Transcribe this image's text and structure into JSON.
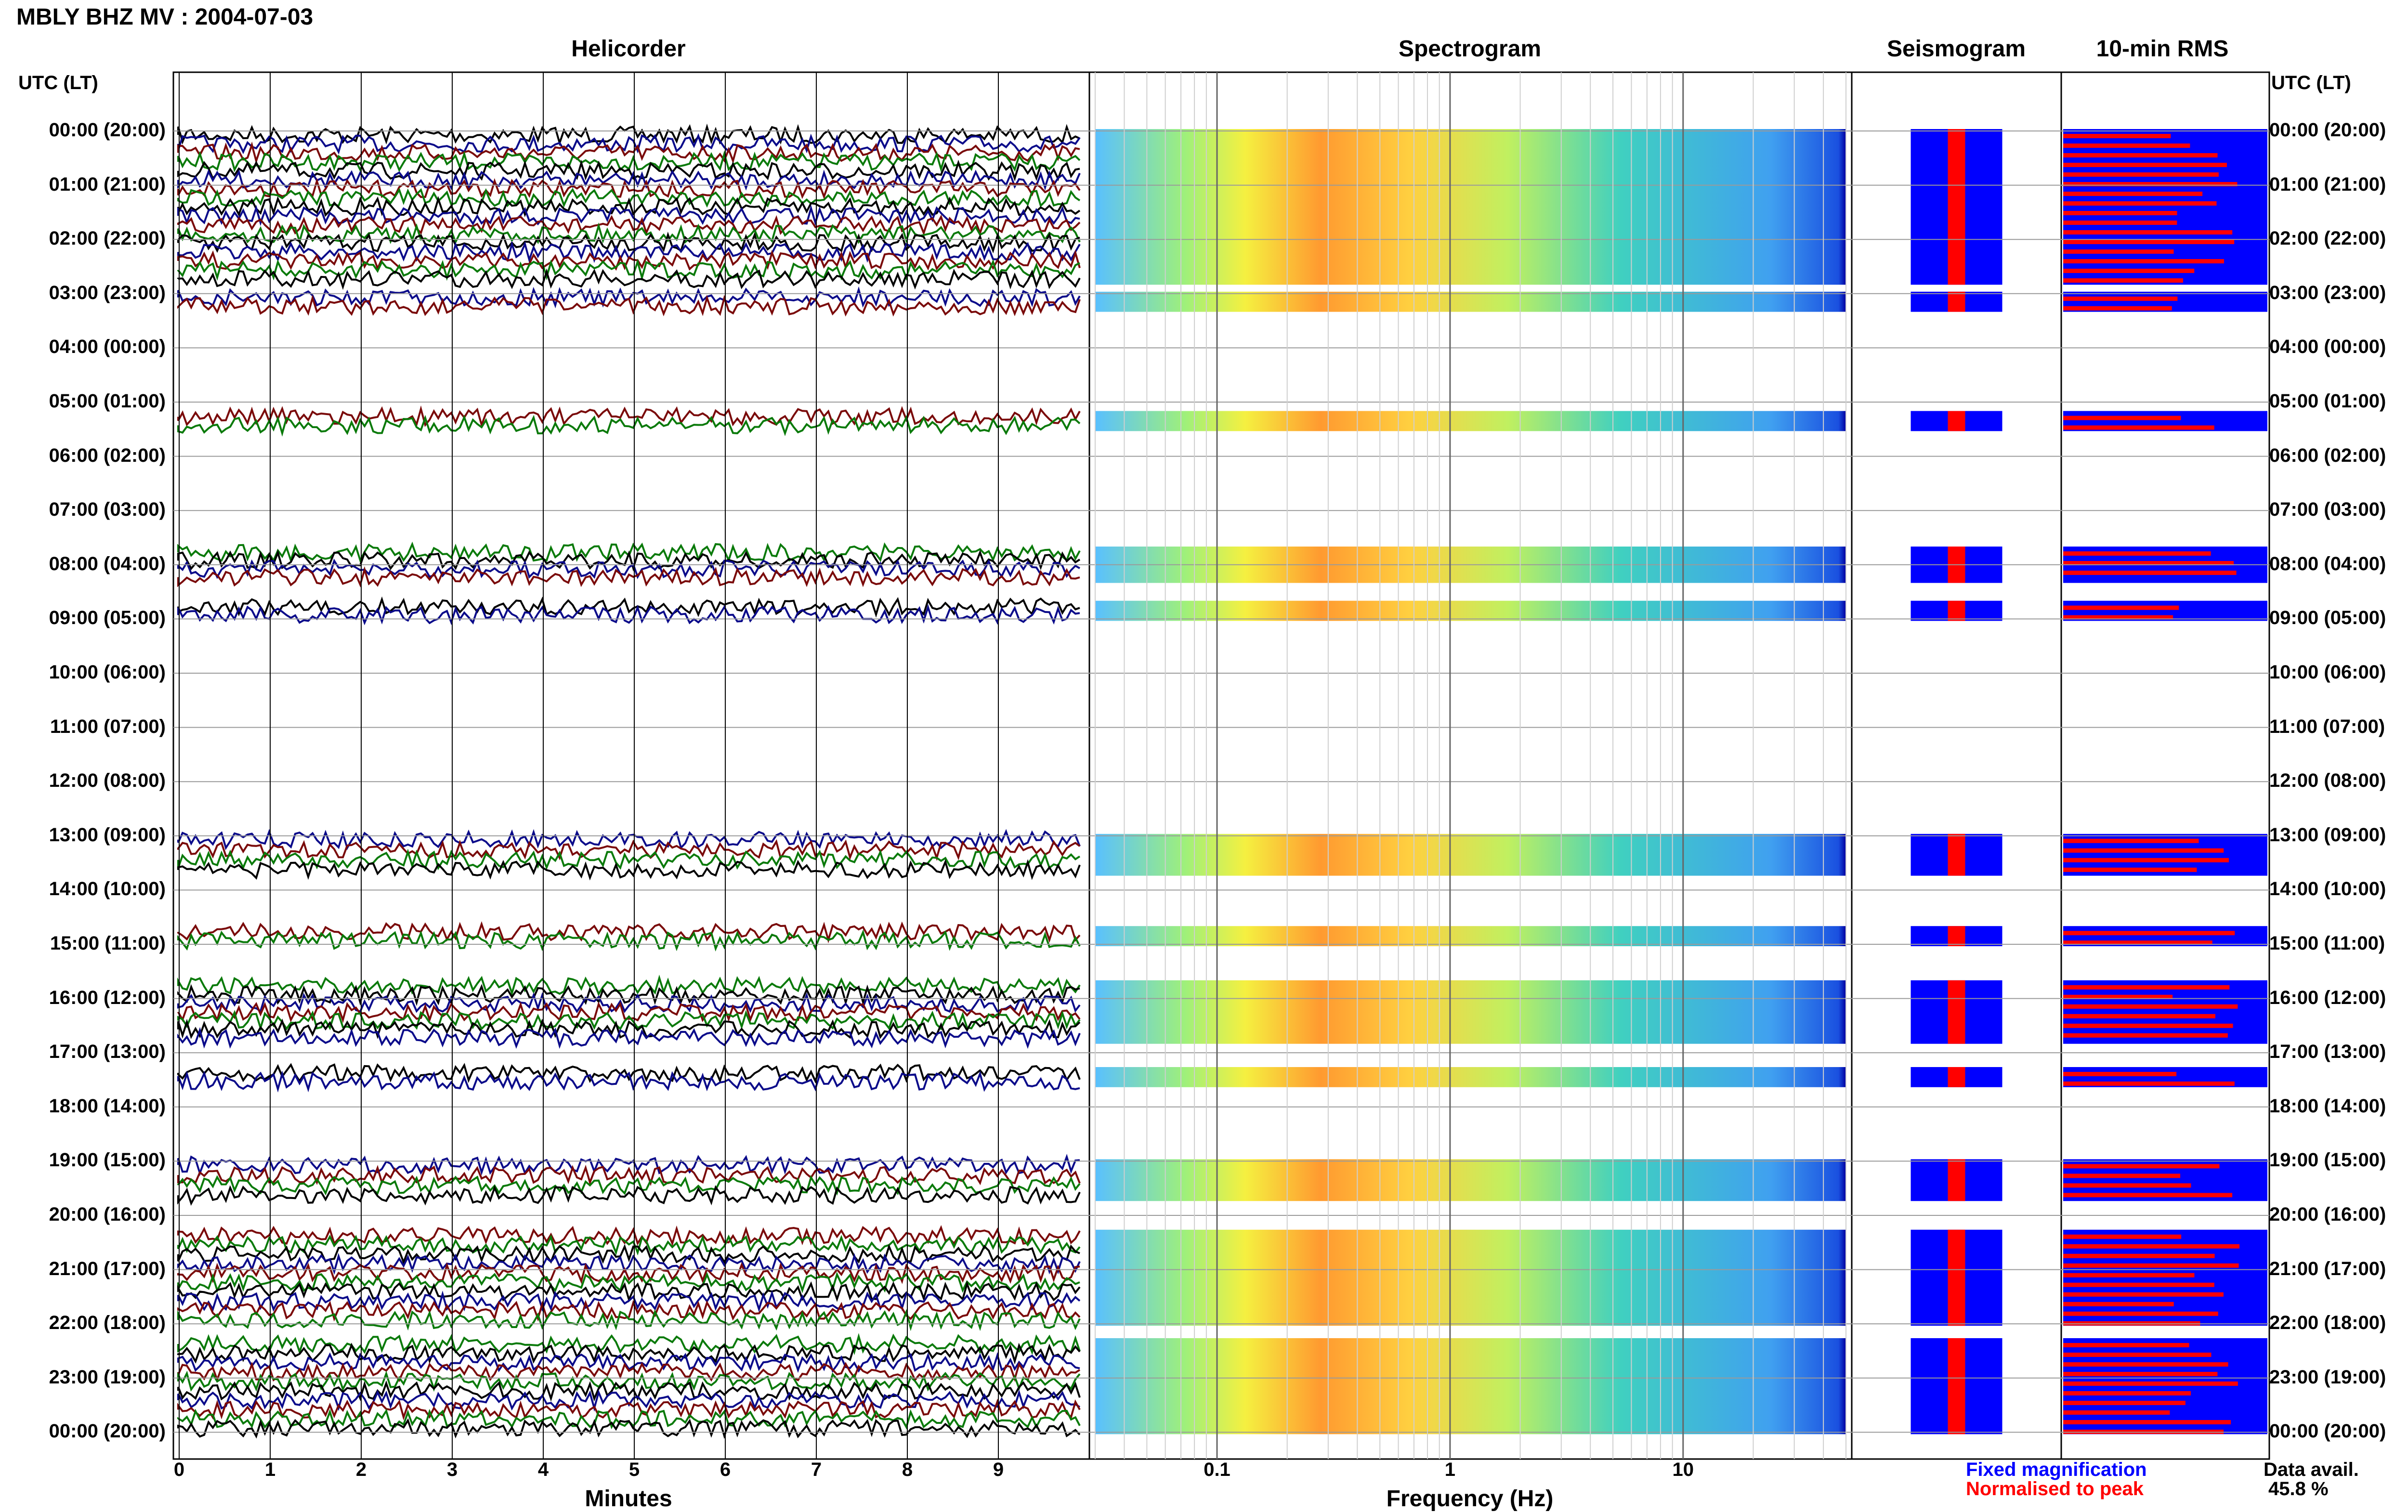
{
  "header": {
    "title": "MBLY BHZ MV : 2004-07-03",
    "left_axis_label": "UTC (LT)",
    "right_axis_label": "UTC (LT)"
  },
  "panels": {
    "helicorder": "Helicorder",
    "spectrogram": "Spectrogram",
    "seismogram": "Seismogram",
    "rms": "10-min RMS"
  },
  "axes": {
    "minutes_label": "Minutes",
    "frequency_label": "Frequency (Hz)",
    "minute_ticks": [
      "0",
      "1",
      "2",
      "3",
      "4",
      "5",
      "6",
      "7",
      "8",
      "9"
    ],
    "frequency_ticks": [
      "0.1",
      "1",
      "10"
    ]
  },
  "legend": {
    "fixed": "Fixed magnification",
    "normalised": "Normalised to peak",
    "avail_label": "Data avail.",
    "avail_value": "45.8 %"
  },
  "colors": {
    "trace_black": "#000000",
    "trace_blue": "#0b0b8a",
    "trace_red": "#7a0a0a",
    "trace_green": "#0a7a0a",
    "fixed_blue": "#0000ff",
    "normalised_red": "#ff0000"
  },
  "chart_data": {
    "type": "helicorder",
    "station": "MBLY BHZ MV",
    "date": "2004-07-03",
    "hour_labels": [
      "00:00 (20:00)",
      "01:00 (21:00)",
      "02:00 (22:00)",
      "03:00 (23:00)",
      "04:00 (00:00)",
      "05:00 (01:00)",
      "06:00 (02:00)",
      "07:00 (03:00)",
      "08:00 (04:00)",
      "09:00 (05:00)",
      "10:00 (06:00)",
      "11:00 (07:00)",
      "12:00 (08:00)",
      "13:00 (09:00)",
      "14:00 (10:00)",
      "15:00 (11:00)",
      "16:00 (12:00)",
      "17:00 (13:00)",
      "18:00 (14:00)",
      "19:00 (15:00)",
      "20:00 (16:00)",
      "21:00 (17:00)",
      "22:00 (18:00)",
      "23:00 (19:00)",
      "00:00 (20:00)"
    ],
    "data_blocks_hours": [
      [
        0,
        2.8
      ],
      [
        3.0,
        3.3
      ],
      [
        5.2,
        5.5
      ],
      [
        7.7,
        8.3
      ],
      [
        8.7,
        9.0
      ],
      [
        13.0,
        13.7
      ],
      [
        14.7,
        15.0
      ],
      [
        15.7,
        16.8
      ],
      [
        17.3,
        17.6
      ],
      [
        19.0,
        19.7
      ],
      [
        20.3,
        22.0
      ],
      [
        22.3,
        24.0
      ]
    ],
    "minutes_range": [
      0,
      10
    ],
    "frequency_range_hz": [
      0.03,
      50
    ],
    "frequency_scale": "log",
    "data_availability_percent": 45.8
  }
}
